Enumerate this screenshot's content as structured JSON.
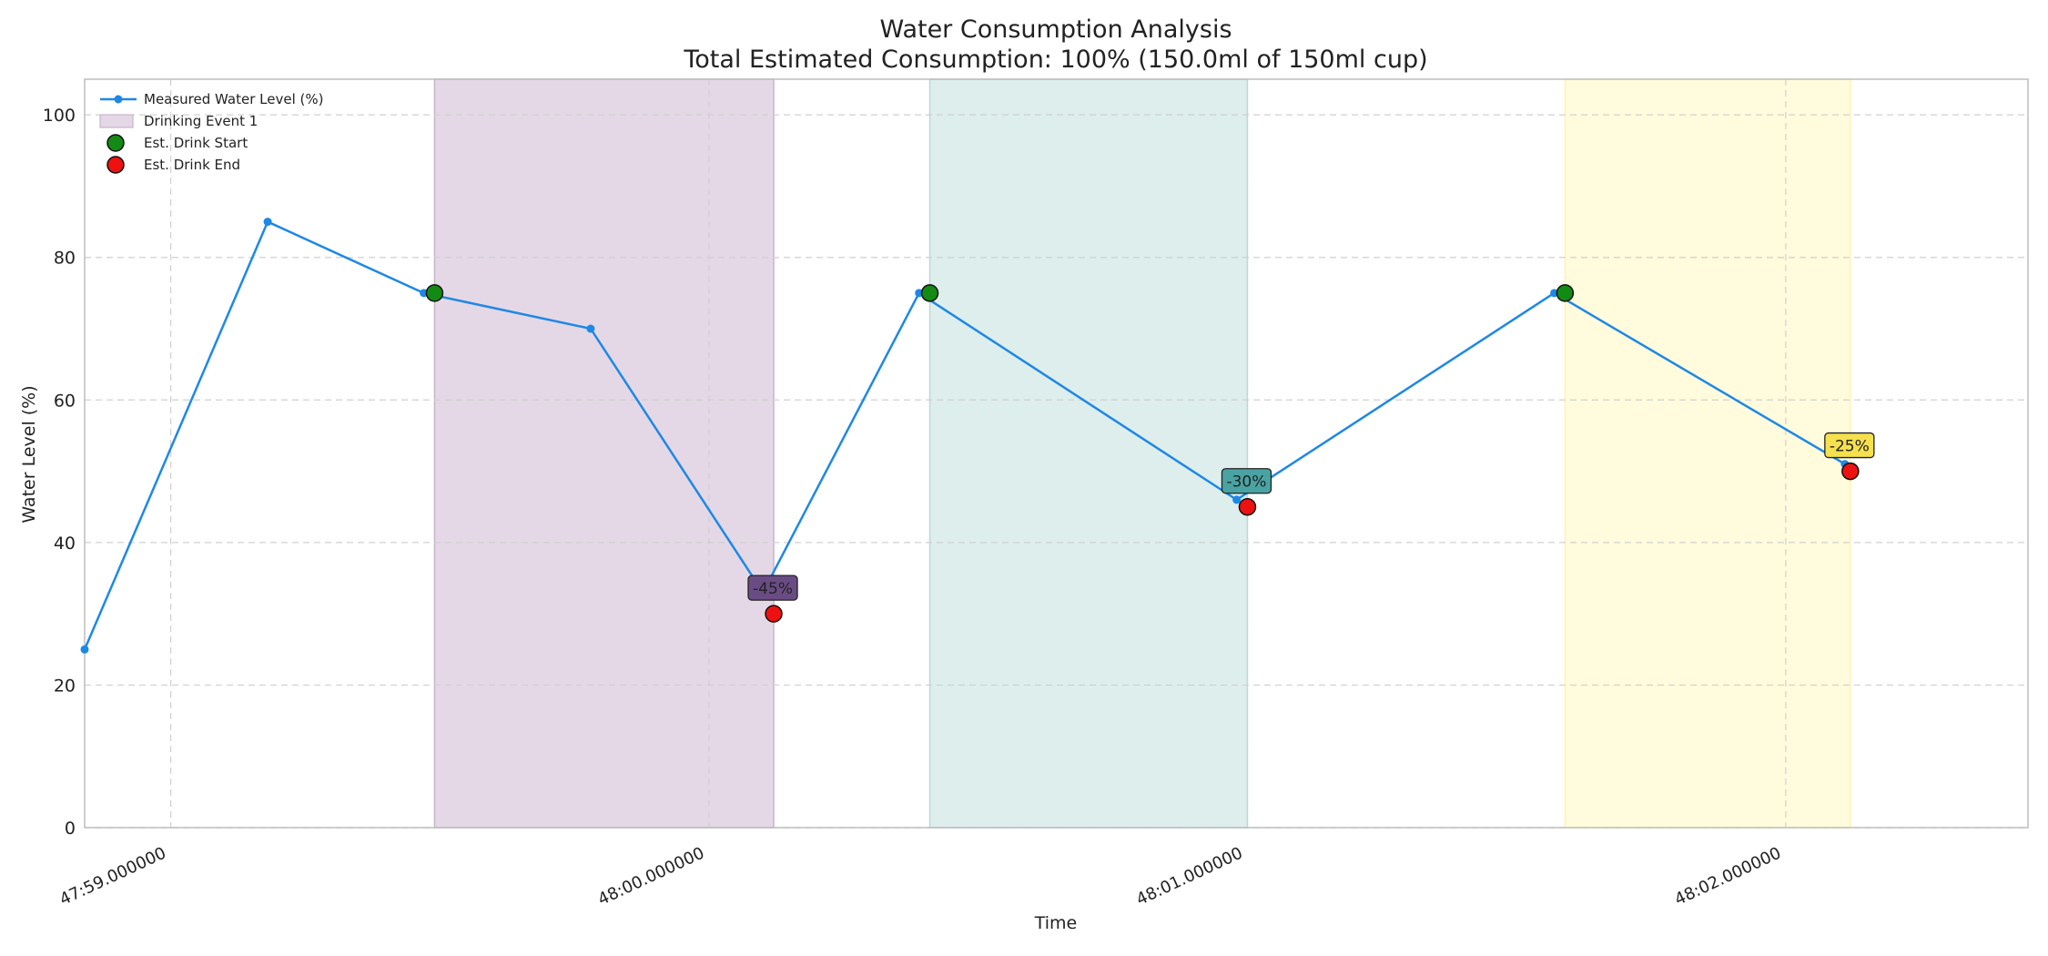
{
  "chart_data": {
    "type": "line",
    "title": "Water Consumption Analysis",
    "subtitle": "Total Estimated Consumption: 100% (150.0ml of 150ml cup)",
    "xlabel": "Time",
    "ylabel": "Water Level (%)",
    "x_unit": "seconds",
    "xlim": [
      58.84,
      62.45
    ],
    "ylim": [
      0,
      105
    ],
    "grid": true,
    "legend_placement": "top-left",
    "x_ticks": [
      {
        "value": 59,
        "label": "47:59.000000"
      },
      {
        "value": 60,
        "label": "48:00.000000"
      },
      {
        "value": 61,
        "label": "48:01.000000"
      },
      {
        "value": 62,
        "label": "48:02.000000"
      }
    ],
    "y_ticks": [
      {
        "value": 0,
        "label": "0"
      },
      {
        "value": 20,
        "label": "20"
      },
      {
        "value": 40,
        "label": "40"
      },
      {
        "value": 60,
        "label": "60"
      },
      {
        "value": 80,
        "label": "80"
      },
      {
        "value": 100,
        "label": "100"
      }
    ],
    "series": [
      {
        "name": "Measured Water Level (%)",
        "color": "#1e88e5",
        "points": [
          {
            "x": 58.84,
            "y": 25
          },
          {
            "x": 59.18,
            "y": 85
          },
          {
            "x": 59.47,
            "y": 75
          },
          {
            "x": 59.78,
            "y": 70
          },
          {
            "x": 60.1,
            "y": 33
          },
          {
            "x": 60.39,
            "y": 75
          },
          {
            "x": 60.98,
            "y": 46
          },
          {
            "x": 61.57,
            "y": 75
          },
          {
            "x": 62.11,
            "y": 51
          }
        ]
      }
    ],
    "drink_events": [
      {
        "start": 59.49,
        "end": 60.12,
        "fill": "#e4d8e6",
        "stroke": "#c9b3cc",
        "label_bg": "#6a4c84",
        "label": "-45%",
        "start_level": 75,
        "end_level": 30
      },
      {
        "start": 60.41,
        "end": 61.0,
        "fill": "#ddeeec",
        "stroke": "#bcd8d5",
        "label_bg": "#4aa3a3",
        "label": "-30%",
        "start_level": 75,
        "end_level": 45
      },
      {
        "start": 61.59,
        "end": 62.12,
        "fill": "#fffbdc",
        "stroke": "#fff4b5",
        "label_bg": "#f5e04e",
        "label": "-25%",
        "start_level": 75,
        "end_level": 50
      }
    ],
    "legend": [
      {
        "label": "Measured Water Level (%)",
        "kind": "line",
        "color": "#1e88e5"
      },
      {
        "label": "Drinking Event 1",
        "kind": "patch",
        "color": "#e4d8e6"
      },
      {
        "label": "Est. Drink Start",
        "kind": "marker",
        "color": "#138a13"
      },
      {
        "label": "Est. Drink End",
        "kind": "marker",
        "color": "#ee1111"
      }
    ]
  }
}
